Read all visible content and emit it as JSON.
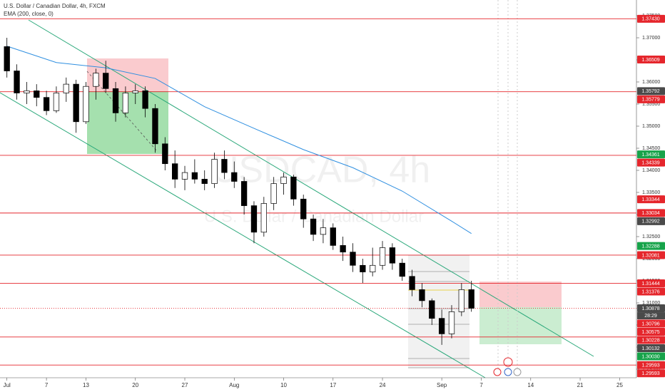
{
  "chart_data": {
    "type": "candlestick",
    "title": "U.S. Dollar / Canadian Dollar, 4h, FXCM",
    "indicator": "EMA (200, close, 0)",
    "watermark": "USDCAD, 4h",
    "watermark_subtitle": "U.S. Dollar / Canadian Dollar",
    "up_color": "#ffffff",
    "down_color": "#000000",
    "x": [
      0,
      1,
      2,
      3,
      4,
      5,
      6,
      7,
      8,
      9,
      10,
      11,
      12,
      13,
      14,
      15,
      16,
      17,
      18,
      19,
      20,
      21,
      22,
      23,
      24,
      25,
      26,
      27,
      28,
      29,
      30,
      31,
      32,
      33,
      34,
      35,
      36,
      37,
      38,
      39,
      40,
      41,
      42,
      43,
      44,
      45,
      46,
      47
    ],
    "open": [
      1.368,
      1.3625,
      1.3575,
      1.358,
      1.3565,
      1.3535,
      1.3575,
      1.3595,
      1.351,
      1.359,
      1.362,
      1.3585,
      1.353,
      1.3575,
      1.358,
      1.354,
      1.346,
      1.3415,
      1.338,
      1.3395,
      1.338,
      1.337,
      1.3425,
      1.3395,
      1.3375,
      1.332,
      1.326,
      1.3325,
      1.337,
      1.3385,
      1.3335,
      1.329,
      1.3255,
      1.327,
      1.323,
      1.3215,
      1.3185,
      1.317,
      1.3185,
      1.3225,
      1.319,
      1.316,
      1.313,
      1.3105,
      1.3065,
      1.303,
      1.308,
      1.313
    ],
    "high": [
      1.37,
      1.364,
      1.36,
      1.3595,
      1.358,
      1.359,
      1.361,
      1.3605,
      1.36,
      1.363,
      1.3648,
      1.36,
      1.359,
      1.3595,
      1.359,
      1.355,
      1.3475,
      1.3445,
      1.341,
      1.3425,
      1.34,
      1.344,
      1.3445,
      1.342,
      1.3385,
      1.333,
      1.334,
      1.3385,
      1.3395,
      1.339,
      1.3345,
      1.33,
      1.329,
      1.328,
      1.325,
      1.3235,
      1.32,
      1.3225,
      1.324,
      1.3235,
      1.32,
      1.3175,
      1.3145,
      1.311,
      1.3085,
      1.3095,
      1.3145,
      1.315
    ],
    "low": [
      1.361,
      1.356,
      1.355,
      1.3545,
      1.3525,
      1.353,
      1.3555,
      1.3485,
      1.3505,
      1.356,
      1.3575,
      1.351,
      1.352,
      1.355,
      1.352,
      1.344,
      1.34,
      1.336,
      1.3355,
      1.337,
      1.3355,
      1.336,
      1.338,
      1.336,
      1.33,
      1.3235,
      1.325,
      1.331,
      1.3345,
      1.332,
      1.327,
      1.324,
      1.3235,
      1.322,
      1.3195,
      1.317,
      1.3145,
      1.316,
      1.3175,
      1.3175,
      1.315,
      1.3115,
      1.309,
      1.305,
      1.3005,
      1.302,
      1.307,
      1.308
    ],
    "close": [
      1.3625,
      1.3575,
      1.358,
      1.3565,
      1.3535,
      1.3575,
      1.3595,
      1.351,
      1.359,
      1.362,
      1.3585,
      1.353,
      1.3575,
      1.358,
      1.354,
      1.346,
      1.3415,
      1.338,
      1.3395,
      1.338,
      1.337,
      1.3425,
      1.3395,
      1.3375,
      1.332,
      1.326,
      1.3325,
      1.337,
      1.3385,
      1.3335,
      1.329,
      1.3255,
      1.327,
      1.323,
      1.3215,
      1.3185,
      1.317,
      1.3185,
      1.3225,
      1.319,
      1.316,
      1.313,
      1.3105,
      1.3065,
      1.303,
      1.308,
      1.313,
      1.30878
    ],
    "ema": {
      "color": "#2f8fe0",
      "x": [
        0,
        5,
        10,
        15,
        20,
        25,
        30,
        35,
        40,
        45,
        47
      ],
      "values": [
        1.3681,
        1.3644,
        1.3632,
        1.3608,
        1.3544,
        1.3495,
        1.3447,
        1.3406,
        1.3353,
        1.3285,
        1.3257
      ]
    },
    "xlim": [
      -0.7,
      63.7
    ],
    "ylim": [
      1.29306,
      1.37855
    ],
    "xticks": [
      {
        "value": 0,
        "label": "Jul"
      },
      {
        "value": 4,
        "label": "7"
      },
      {
        "value": 8,
        "label": "13"
      },
      {
        "value": 13,
        "label": "20"
      },
      {
        "value": 18,
        "label": "27"
      },
      {
        "value": 23,
        "label": "Aug"
      },
      {
        "value": 28,
        "label": "10"
      },
      {
        "value": 33,
        "label": "17"
      },
      {
        "value": 38,
        "label": "24"
      },
      {
        "value": 44,
        "label": "Sep"
      },
      {
        "value": 48,
        "label": "7"
      },
      {
        "value": 53,
        "label": "14"
      },
      {
        "value": 58,
        "label": "21"
      },
      {
        "value": 62,
        "label": "25"
      }
    ],
    "yticks": [
      {
        "value": 1.295,
        "label": "1.29500"
      },
      {
        "value": 1.3,
        "label": "1.30000"
      },
      {
        "value": 1.305,
        "label": "1.30500"
      },
      {
        "value": 1.31,
        "label": "1.31000"
      },
      {
        "value": 1.315,
        "label": "1.31500"
      },
      {
        "value": 1.32,
        "label": "1.32000"
      },
      {
        "value": 1.325,
        "label": "1.32500"
      },
      {
        "value": 1.33,
        "label": "1.33000"
      },
      {
        "value": 1.335,
        "label": "1.33500"
      },
      {
        "value": 1.34,
        "label": "1.34000"
      },
      {
        "value": 1.345,
        "label": "1.34500"
      },
      {
        "value": 1.35,
        "label": "1.35000"
      },
      {
        "value": 1.355,
        "label": "1.35500"
      },
      {
        "value": 1.36,
        "label": "1.36000"
      },
      {
        "value": 1.365,
        "label": "1.36500"
      },
      {
        "value": 1.37,
        "label": "1.37000"
      },
      {
        "value": 1.375,
        "label": "1.37500"
      }
    ],
    "price_tags": [
      {
        "value": 1.3743,
        "label": "1.37430",
        "color": "#e5262c",
        "line": "solid"
      },
      {
        "value": 1.36509,
        "label": "1.36509",
        "color": "#e5262c"
      },
      {
        "value": 1.35792,
        "label": "1.35792",
        "color": "#4a4a4a"
      },
      {
        "value": 1.35779,
        "label": "1.35779",
        "color": "#e5262c",
        "line": "solid"
      },
      {
        "value": 1.34361,
        "label": "1.34361",
        "color": "#17a34a"
      },
      {
        "value": 1.34339,
        "label": "1.34339",
        "color": "#e5262c",
        "line": "solid"
      },
      {
        "value": 1.33344,
        "label": "1.33344",
        "color": "#e5262c"
      },
      {
        "value": 1.33034,
        "label": "1.33034",
        "color": "#e5262c",
        "line": "solid"
      },
      {
        "value": 1.32992,
        "label": "1.32992",
        "color": "#4a4a4a"
      },
      {
        "value": 1.32288,
        "label": "1.32288",
        "color": "#17a34a"
      },
      {
        "value": 1.32081,
        "label": "1.32081",
        "color": "#e5262c",
        "line": "solid"
      },
      {
        "value": 1.31444,
        "label": "1.31444",
        "color": "#e5262c",
        "line": "solid"
      },
      {
        "value": 1.31376,
        "label": "1.31376",
        "color": "#e5262c"
      },
      {
        "value": 1.30878,
        "label": "1.30878",
        "color": "#4a4a4a",
        "line": "dotted"
      },
      {
        "value": 1.30796,
        "label": "1.30796",
        "color": "#e5262c"
      },
      {
        "value": 1.30575,
        "label": "1.30575",
        "color": "#e5262c"
      },
      {
        "value": 1.30228,
        "label": "1.30228",
        "color": "#e5262c",
        "line": "solid"
      },
      {
        "value": 1.30132,
        "label": "1.30132",
        "color": "#4a4a4a"
      },
      {
        "value": 1.3003,
        "label": "1.30030",
        "color": "#17a34a"
      },
      {
        "value": 1.29593,
        "label": "1.29593",
        "color": "#e5262c",
        "line": "solid"
      },
      {
        "value": 1.29593,
        "label": "1.29593",
        "color": "#e5262c"
      }
    ],
    "countdown": "28:29"
  }
}
